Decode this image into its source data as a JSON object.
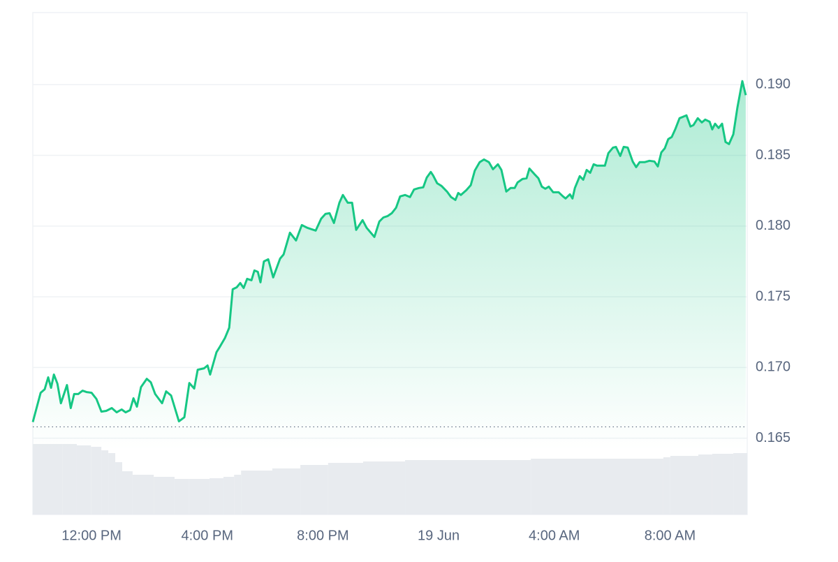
{
  "chart_data": {
    "type": "line",
    "series": [
      {
        "color": "#16c784",
        "x": [
          9.97,
          10.24,
          10.38,
          10.5,
          10.6,
          10.7,
          10.82,
          10.94,
          11.15,
          11.28,
          11.4,
          11.54,
          11.69,
          11.83,
          12.0,
          12.17,
          12.34,
          12.51,
          12.7,
          12.87,
          13.04,
          13.18,
          13.33,
          13.45,
          13.57,
          13.71,
          13.91,
          14.05,
          14.2,
          14.44,
          14.58,
          14.75,
          15.02,
          15.21,
          15.38,
          15.55,
          15.67,
          15.89,
          16.01,
          16.1,
          16.32,
          16.44,
          16.61,
          16.76,
          16.88,
          17.02,
          17.14,
          17.26,
          17.38,
          17.53,
          17.63,
          17.75,
          17.84,
          17.96,
          18.11,
          18.28,
          18.52,
          18.64,
          18.86,
          19.07,
          19.27,
          19.46,
          19.75,
          19.94,
          20.09,
          20.23,
          20.38,
          20.57,
          20.69,
          20.86,
          21.01,
          21.15,
          21.37,
          21.51,
          21.78,
          21.95,
          22.09,
          22.24,
          22.38,
          22.53,
          22.67,
          22.84,
          23.01,
          23.15,
          23.32,
          23.47,
          23.59,
          23.73,
          23.81,
          23.95,
          24.1,
          24.29,
          24.43,
          24.58,
          24.68,
          24.77,
          24.96,
          25.11,
          25.25,
          25.42,
          25.57,
          25.74,
          25.88,
          26.05,
          26.17,
          26.34,
          26.49,
          26.63,
          26.73,
          26.9,
          27.04,
          27.14,
          27.31,
          27.45,
          27.57,
          27.69,
          27.81,
          27.96,
          28.15,
          28.3,
          28.39,
          28.54,
          28.63,
          28.71,
          28.88,
          29.0,
          29.12,
          29.24,
          29.36,
          29.48,
          29.75,
          29.87,
          30.03,
          30.13,
          30.28,
          30.4,
          30.54,
          30.71,
          30.83,
          30.95,
          31.12,
          31.29,
          31.46,
          31.58,
          31.7,
          31.82,
          31.94,
          32.06,
          32.18,
          32.33,
          32.45,
          32.57,
          32.71,
          32.81,
          32.96,
          33.1,
          33.22,
          33.37,
          33.46,
          33.56,
          33.68,
          33.8,
          33.92,
          34.04,
          34.19,
          34.33,
          34.5,
          34.62
        ],
        "values": [
          0.16614,
          0.16821,
          0.16846,
          0.1693,
          0.16856,
          0.1695,
          0.16886,
          0.16747,
          0.16876,
          0.16713,
          0.16812,
          0.16812,
          0.16836,
          0.16826,
          0.16821,
          0.16777,
          0.16688,
          0.16693,
          0.16713,
          0.16683,
          0.16703,
          0.16683,
          0.16698,
          0.16782,
          0.16723,
          0.16861,
          0.1692,
          0.16895,
          0.16812,
          0.16747,
          0.16831,
          0.16802,
          0.16619,
          0.16648,
          0.1689,
          0.16851,
          0.16984,
          0.16994,
          0.17014,
          0.1695,
          0.17108,
          0.17148,
          0.17207,
          0.17281,
          0.17553,
          0.17567,
          0.17597,
          0.17562,
          0.17627,
          0.17617,
          0.17686,
          0.17676,
          0.17602,
          0.1775,
          0.17765,
          0.17637,
          0.1777,
          0.17799,
          0.17953,
          0.17898,
          0.18007,
          0.17988,
          0.17968,
          0.18052,
          0.18086,
          0.18091,
          0.18022,
          0.18165,
          0.1822,
          0.18165,
          0.18165,
          0.17973,
          0.18042,
          0.17988,
          0.17923,
          0.18032,
          0.18061,
          0.18071,
          0.18091,
          0.1813,
          0.1821,
          0.1822,
          0.18205,
          0.18259,
          0.18269,
          0.18274,
          0.18343,
          0.18383,
          0.18358,
          0.18303,
          0.18284,
          0.18244,
          0.18205,
          0.18185,
          0.18234,
          0.1822,
          0.18254,
          0.18289,
          0.18392,
          0.18452,
          0.18471,
          0.18452,
          0.18402,
          0.18437,
          0.18397,
          0.18244,
          0.18269,
          0.18269,
          0.18308,
          0.18333,
          0.18338,
          0.18407,
          0.18368,
          0.18338,
          0.18279,
          0.18264,
          0.18279,
          0.18239,
          0.18239,
          0.1821,
          0.18195,
          0.18225,
          0.18195,
          0.18269,
          0.18353,
          0.18328,
          0.18397,
          0.18377,
          0.18437,
          0.18427,
          0.18427,
          0.18516,
          0.18555,
          0.1856,
          0.18496,
          0.1856,
          0.18555,
          0.18457,
          0.18417,
          0.18452,
          0.18452,
          0.18462,
          0.18457,
          0.18422,
          0.18521,
          0.1855,
          0.18615,
          0.1863,
          0.18684,
          0.18763,
          0.18773,
          0.18783,
          0.18704,
          0.18714,
          0.18763,
          0.18733,
          0.18753,
          0.18738,
          0.18684,
          0.18724,
          0.18694,
          0.18724,
          0.18595,
          0.1858,
          0.18649,
          0.18837,
          0.19025,
          0.18926
        ]
      }
    ],
    "xlim": [
      9.97,
      34.67
    ],
    "xticks": [
      {
        "value": 12,
        "label": "12:00 PM"
      },
      {
        "value": 16,
        "label": "4:00 PM"
      },
      {
        "value": 20,
        "label": "8:00 PM"
      },
      {
        "value": 24,
        "label": "19 Jun"
      },
      {
        "value": 28,
        "label": "4:00 AM"
      },
      {
        "value": 32,
        "label": "8:00 AM"
      }
    ],
    "ylim": [
      0.1596,
      0.1951
    ],
    "yticks": [
      0.165,
      {
        "value": 0.17,
        "label": "0.170"
      },
      0.175,
      {
        "value": 0.18,
        "label": "0.180"
      },
      0.185,
      {
        "value": 0.19,
        "label": "0.190"
      }
    ],
    "grid": true,
    "baseline": 0.1658,
    "volume": {
      "color": "#e8ebef",
      "ylim": [
        0,
        102
      ],
      "x": [
        9.97,
        10.99,
        11.49,
        11.98,
        12.34,
        12.58,
        12.82,
        13.06,
        13.42,
        14.15,
        14.87,
        15.36,
        16.08,
        16.56,
        16.93,
        17.17,
        18.25,
        19.22,
        20.18,
        21.39,
        22.84,
        27.19,
        31.77,
        32.01,
        32.98,
        33.46,
        34.19
      ],
      "values": [
        101,
        101,
        99,
        97,
        92,
        88,
        75,
        62,
        57,
        54,
        51,
        51,
        52,
        54,
        57,
        63,
        66,
        71,
        74,
        76,
        78,
        80,
        82,
        84,
        86,
        87,
        88
      ]
    }
  }
}
